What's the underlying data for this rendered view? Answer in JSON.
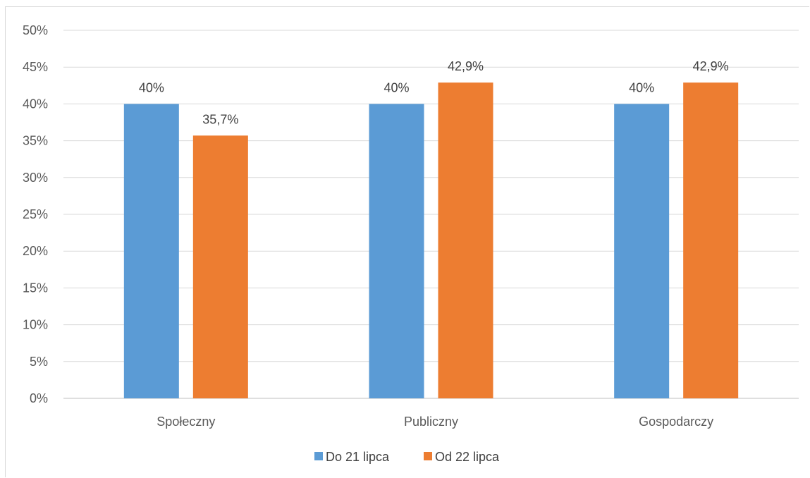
{
  "chart_data": {
    "type": "bar",
    "categories": [
      "Społeczny",
      "Publiczny",
      "Gospodarczy"
    ],
    "series": [
      {
        "name": "Do 21 lipca",
        "values": [
          40,
          40,
          40
        ],
        "labels": [
          "40%",
          "40%",
          "40%"
        ],
        "color": "#5b9bd5"
      },
      {
        "name": "Od 22 lipca",
        "values": [
          35.7,
          42.9,
          42.9
        ],
        "labels": [
          "35,7%",
          "42,9%",
          "42,9%"
        ],
        "color": "#ed7d31"
      }
    ],
    "ylim": [
      0,
      50
    ],
    "yticks": [
      0,
      5,
      10,
      15,
      20,
      25,
      30,
      35,
      40,
      45,
      50
    ],
    "ytick_labels": [
      "0%",
      "5%",
      "10%",
      "15%",
      "20%",
      "25%",
      "30%",
      "35%",
      "40%",
      "45%",
      "50%"
    ],
    "grid": true,
    "legend_position": "bottom",
    "title": "",
    "xlabel": "",
    "ylabel": ""
  }
}
